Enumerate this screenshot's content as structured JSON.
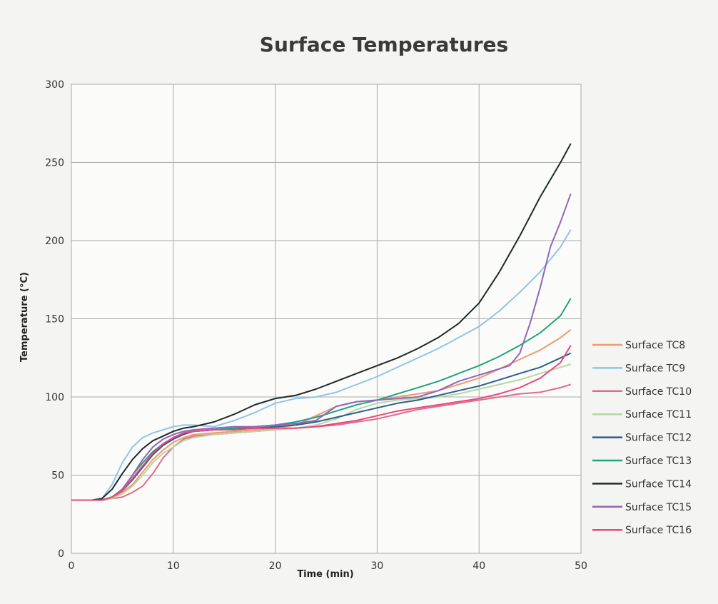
{
  "chart_data": {
    "type": "line",
    "title": "Surface Temperatures",
    "xlabel": "Time (min)",
    "ylabel": "Temperature (°C)",
    "xlim": [
      0,
      50
    ],
    "ylim": [
      0,
      300
    ],
    "xticks": [
      0,
      10,
      20,
      30,
      40,
      50
    ],
    "yticks": [
      0,
      50,
      100,
      150,
      200,
      250,
      300
    ],
    "grid": true,
    "legend_position": "right",
    "series": [
      {
        "name": "Surface TC8",
        "color": "#ef9a6e",
        "x": [
          0,
          2,
          3,
          4,
          5,
          6,
          7,
          8,
          9,
          10,
          11,
          12,
          14,
          16,
          18,
          20,
          22,
          24,
          26,
          28,
          30,
          32,
          34,
          36,
          38,
          40,
          42,
          44,
          46,
          48,
          49
        ],
        "y": [
          34,
          34,
          34,
          36,
          39,
          44,
          52,
          60,
          66,
          71,
          74,
          76,
          77,
          78,
          79,
          80,
          82,
          88,
          94,
          97,
          98,
          100,
          102,
          104,
          108,
          112,
          118,
          124,
          130,
          138,
          143
        ]
      },
      {
        "name": "Surface TC9",
        "color": "#8ec5ea",
        "x": [
          0,
          2,
          3,
          4,
          5,
          6,
          7,
          8,
          9,
          10,
          11,
          12,
          14,
          16,
          18,
          20,
          22,
          24,
          26,
          28,
          30,
          32,
          34,
          36,
          38,
          40,
          42,
          44,
          46,
          48,
          49
        ],
        "y": [
          34,
          34,
          35,
          44,
          58,
          68,
          74,
          77,
          79,
          81,
          82,
          82,
          81,
          85,
          90,
          96,
          99,
          100,
          103,
          108,
          113,
          119,
          125,
          131,
          138,
          145,
          155,
          167,
          180,
          196,
          207
        ]
      },
      {
        "name": "Surface TC10",
        "color": "#e06b8d",
        "x": [
          0,
          2,
          3,
          4,
          5,
          6,
          7,
          8,
          9,
          10,
          11,
          12,
          14,
          16,
          18,
          20,
          22,
          24,
          26,
          28,
          30,
          32,
          34,
          36,
          38,
          40,
          42,
          44,
          46,
          48,
          49
        ],
        "y": [
          34,
          34,
          34,
          35,
          36,
          39,
          43,
          51,
          61,
          68,
          73,
          75,
          76,
          77,
          78,
          79,
          80,
          81,
          82,
          84,
          86,
          89,
          92,
          94,
          96,
          98,
          100,
          102,
          103,
          106,
          108
        ]
      },
      {
        "name": "Surface TC11",
        "color": "#b6d7a2",
        "x": [
          0,
          2,
          3,
          4,
          5,
          6,
          7,
          8,
          9,
          10,
          11,
          12,
          14,
          16,
          18,
          20,
          22,
          24,
          26,
          28,
          30,
          32,
          34,
          36,
          38,
          40,
          42,
          44,
          46,
          48,
          49
        ],
        "y": [
          34,
          34,
          34,
          35,
          38,
          43,
          50,
          58,
          64,
          68,
          72,
          74,
          76,
          77,
          78,
          79,
          80,
          82,
          86,
          92,
          96,
          98,
          99,
          100,
          102,
          105,
          108,
          111,
          115,
          119,
          121
        ]
      },
      {
        "name": "Surface TC12",
        "color": "#2b5f8c",
        "x": [
          0,
          2,
          3,
          4,
          5,
          6,
          7,
          8,
          9,
          10,
          11,
          12,
          14,
          16,
          18,
          20,
          22,
          24,
          26,
          28,
          30,
          32,
          34,
          36,
          38,
          40,
          42,
          44,
          46,
          48,
          49
        ],
        "y": [
          34,
          34,
          34,
          36,
          40,
          47,
          55,
          63,
          69,
          73,
          76,
          78,
          79,
          80,
          80,
          81,
          82,
          84,
          87,
          90,
          93,
          96,
          98,
          101,
          104,
          107,
          111,
          115,
          119,
          125,
          128
        ]
      },
      {
        "name": "Surface TC13",
        "color": "#20a37c",
        "x": [
          0,
          2,
          3,
          4,
          5,
          6,
          7,
          8,
          9,
          10,
          11,
          12,
          14,
          16,
          18,
          20,
          22,
          24,
          26,
          28,
          30,
          32,
          34,
          36,
          38,
          40,
          42,
          44,
          46,
          48,
          49
        ],
        "y": [
          34,
          34,
          34,
          36,
          41,
          50,
          58,
          65,
          70,
          74,
          77,
          78,
          79,
          80,
          81,
          82,
          84,
          87,
          91,
          95,
          98,
          102,
          106,
          110,
          115,
          120,
          126,
          133,
          141,
          152,
          163
        ]
      },
      {
        "name": "Surface TC14",
        "color": "#1d2a2a",
        "x": [
          0,
          2,
          3,
          4,
          5,
          6,
          7,
          8,
          9,
          10,
          11,
          12,
          14,
          16,
          18,
          20,
          22,
          24,
          26,
          28,
          30,
          32,
          34,
          36,
          38,
          40,
          42,
          44,
          46,
          48,
          49
        ],
        "y": [
          34,
          34,
          35,
          41,
          51,
          60,
          67,
          72,
          75,
          78,
          80,
          81,
          84,
          89,
          95,
          99,
          101,
          105,
          110,
          115,
          120,
          125,
          131,
          138,
          147,
          160,
          180,
          203,
          228,
          250,
          262
        ]
      },
      {
        "name": "Surface TC15",
        "color": "#9265bd",
        "x": [
          0,
          2,
          3,
          4,
          5,
          6,
          7,
          8,
          9,
          10,
          11,
          12,
          14,
          16,
          18,
          20,
          22,
          24,
          26,
          28,
          30,
          32,
          34,
          36,
          38,
          40,
          41,
          42,
          43,
          44,
          45,
          46,
          47,
          48,
          49
        ],
        "y": [
          34,
          34,
          34,
          36,
          41,
          50,
          60,
          68,
          73,
          76,
          78,
          79,
          80,
          81,
          81,
          82,
          83,
          85,
          94,
          97,
          98,
          99,
          100,
          104,
          110,
          114,
          116,
          118,
          120,
          128,
          147,
          170,
          196,
          212,
          230
        ]
      },
      {
        "name": "Surface TC16",
        "color": "#e8487a",
        "x": [
          0,
          2,
          3,
          4,
          5,
          6,
          7,
          8,
          9,
          10,
          11,
          12,
          14,
          16,
          18,
          20,
          22,
          24,
          26,
          28,
          30,
          32,
          34,
          36,
          38,
          40,
          42,
          44,
          46,
          48,
          49
        ],
        "y": [
          34,
          34,
          34,
          36,
          40,
          48,
          56,
          64,
          70,
          74,
          77,
          78,
          79,
          79,
          80,
          80,
          80,
          81,
          83,
          85,
          88,
          91,
          93,
          95,
          97,
          99,
          102,
          106,
          112,
          122,
          133
        ]
      }
    ]
  }
}
